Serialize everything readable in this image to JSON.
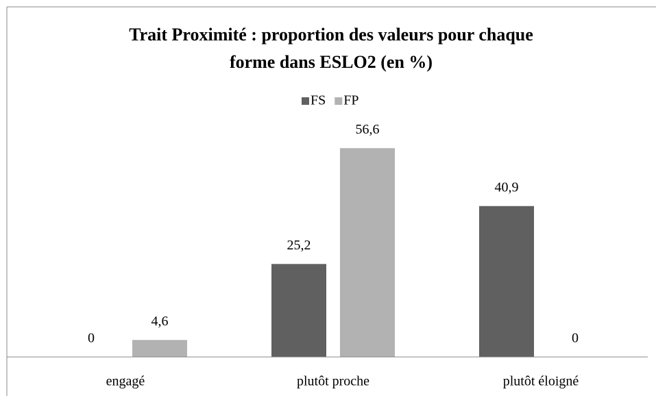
{
  "chart_data": {
    "type": "bar",
    "title": "Trait Proximité : proportion des valeurs pour chaque forme dans ESLO2 (en %)",
    "categories": [
      "engagé",
      "plutôt proche",
      "plutôt éloigné"
    ],
    "series": [
      {
        "name": "FS",
        "color": "#606060",
        "values": [
          0,
          25.2,
          40.9
        ],
        "value_labels": [
          "0",
          "25,2",
          "40,9"
        ]
      },
      {
        "name": "FP",
        "color": "#b2b2b2",
        "values": [
          4.6,
          56.6,
          0
        ],
        "value_labels": [
          "4,6",
          "56,6",
          "0"
        ]
      }
    ],
    "ylim": [
      0,
      65
    ],
    "legend": "top"
  }
}
